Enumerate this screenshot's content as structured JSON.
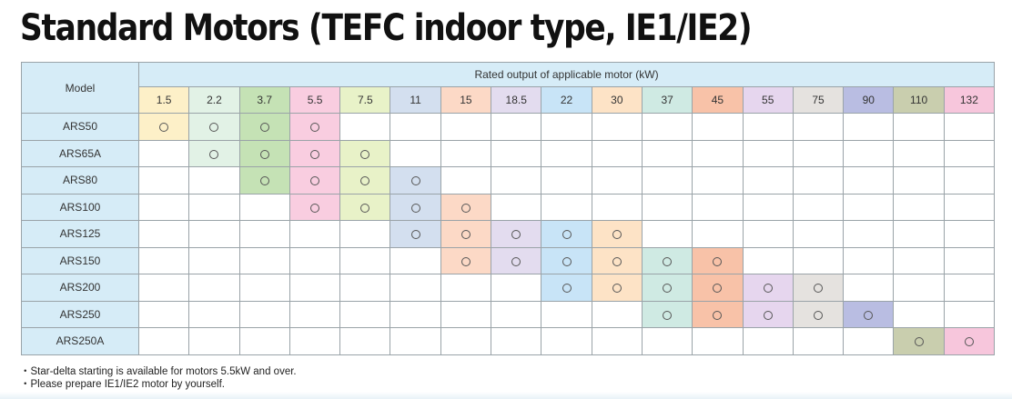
{
  "title": "Standard Motors (TEFC indoor type, IE1/IE2)",
  "table": {
    "model_header": "Model",
    "rated_header": "Rated output of applicable motor (kW)",
    "mark": "○",
    "outputs": [
      {
        "label": "1.5",
        "color": "#fdf0c8"
      },
      {
        "label": "2.2",
        "color": "#e2f2e6"
      },
      {
        "label": "3.7",
        "color": "#c5e2b5"
      },
      {
        "label": "5.5",
        "color": "#f9cde0"
      },
      {
        "label": "7.5",
        "color": "#e8f2c8"
      },
      {
        "label": "11",
        "color": "#d3dfef"
      },
      {
        "label": "15",
        "color": "#fcd9c6"
      },
      {
        "label": "18.5",
        "color": "#e3dcef"
      },
      {
        "label": "22",
        "color": "#c8e4f7"
      },
      {
        "label": "30",
        "color": "#fde3c6"
      },
      {
        "label": "37",
        "color": "#cfeae3"
      },
      {
        "label": "45",
        "color": "#f8c2a8"
      },
      {
        "label": "55",
        "color": "#e6d6ee"
      },
      {
        "label": "75",
        "color": "#e5e2df"
      },
      {
        "label": "90",
        "color": "#b9bde2"
      },
      {
        "label": "110",
        "color": "#c9ceae"
      },
      {
        "label": "132",
        "color": "#f7c6dc"
      }
    ],
    "rows": [
      {
        "model": "ARS50",
        "applicable": [
          0,
          1,
          2,
          3
        ]
      },
      {
        "model": "ARS65A",
        "applicable": [
          1,
          2,
          3,
          4
        ]
      },
      {
        "model": "ARS80",
        "applicable": [
          2,
          3,
          4,
          5
        ]
      },
      {
        "model": "ARS100",
        "applicable": [
          3,
          4,
          5,
          6
        ]
      },
      {
        "model": "ARS125",
        "applicable": [
          5,
          6,
          7,
          8,
          9
        ]
      },
      {
        "model": "ARS150",
        "applicable": [
          6,
          7,
          8,
          9,
          10,
          11
        ]
      },
      {
        "model": "ARS200",
        "applicable": [
          8,
          9,
          10,
          11,
          12,
          13
        ]
      },
      {
        "model": "ARS250",
        "applicable": [
          10,
          11,
          12,
          13,
          14
        ]
      },
      {
        "model": "ARS250A",
        "applicable": [
          15,
          16
        ]
      }
    ]
  },
  "notes": [
    "・Star-delta starting is available for motors 5.5kW and over.",
    "・Please prepare IE1/IE2 motor by yourself."
  ]
}
